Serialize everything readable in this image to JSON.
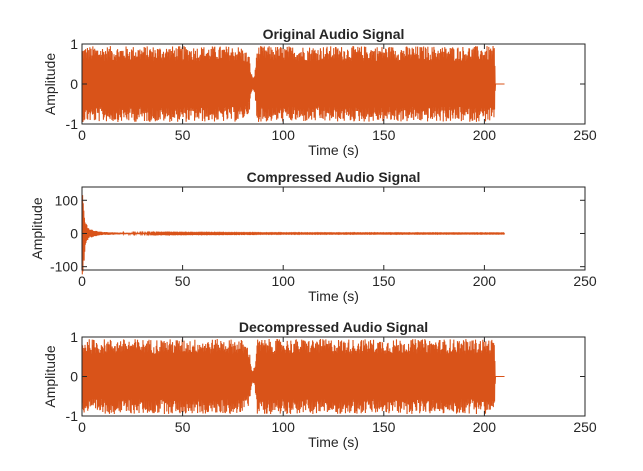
{
  "figure": {
    "background": "#ffffff",
    "signal_color": "#d95319",
    "axis_color": "#262626"
  },
  "chart_data": [
    {
      "type": "line",
      "title": "Original Audio Signal",
      "xlabel": "Time (s)",
      "ylabel": "Amplitude",
      "xlim": [
        0,
        250
      ],
      "ylim": [
        -1,
        1
      ],
      "xticks": [
        0,
        50,
        100,
        150,
        200,
        250
      ],
      "yticks": [
        -1,
        0,
        1
      ],
      "grid": false,
      "series": [
        {
          "color": "#d95319",
          "duration_s": 210,
          "envelope": [
            {
              "t": 0,
              "amp": 0.95
            },
            {
              "t": 79,
              "amp": 0.95
            },
            {
              "t": 81,
              "amp": 0.85
            },
            {
              "t": 83,
              "amp": 0.75
            },
            {
              "t": 84,
              "amp": 0.3
            },
            {
              "t": 85,
              "amp": 0.15
            },
            {
              "t": 86,
              "amp": 0.3
            },
            {
              "t": 87,
              "amp": 0.95
            },
            {
              "t": 205,
              "amp": 0.95
            },
            {
              "t": 205.5,
              "amp": 0.0
            },
            {
              "t": 210,
              "amp": 0.0
            }
          ]
        }
      ]
    },
    {
      "type": "line",
      "title": "Compressed Audio Signal",
      "xlabel": "Time (s)",
      "ylabel": "Amplitude",
      "xlim": [
        0,
        250
      ],
      "ylim": [
        -110,
        140
      ],
      "xticks": [
        0,
        50,
        100,
        150,
        200,
        250
      ],
      "yticks": [
        -100,
        0,
        100
      ],
      "grid": false,
      "series": [
        {
          "color": "#d95319",
          "duration_s": 210,
          "envelope": [
            {
              "t": 0,
              "amp": 140
            },
            {
              "t": 0.8,
              "amp": 110
            },
            {
              "t": 1.5,
              "amp": 40
            },
            {
              "t": 3,
              "amp": 18
            },
            {
              "t": 6,
              "amp": 9
            },
            {
              "t": 10,
              "amp": 5
            },
            {
              "t": 20,
              "amp": 2.5
            },
            {
              "t": 40,
              "amp": 1.8
            },
            {
              "t": 100,
              "amp": 1.2
            },
            {
              "t": 210,
              "amp": 1
            }
          ]
        }
      ]
    },
    {
      "type": "line",
      "title": "Decompressed Audio Signal",
      "xlabel": "Time (s)",
      "ylabel": "Amplitude",
      "xlim": [
        0,
        250
      ],
      "ylim": [
        -1,
        1
      ],
      "xticks": [
        0,
        50,
        100,
        150,
        200,
        250
      ],
      "yticks": [
        -1,
        0,
        1
      ],
      "grid": false,
      "series": [
        {
          "color": "#d95319",
          "duration_s": 210,
          "envelope": [
            {
              "t": 0,
              "amp": 0.95
            },
            {
              "t": 79,
              "amp": 0.95
            },
            {
              "t": 81,
              "amp": 0.85
            },
            {
              "t": 83,
              "amp": 0.75
            },
            {
              "t": 84,
              "amp": 0.3
            },
            {
              "t": 85,
              "amp": 0.15
            },
            {
              "t": 86,
              "amp": 0.3
            },
            {
              "t": 87,
              "amp": 0.95
            },
            {
              "t": 205,
              "amp": 0.95
            },
            {
              "t": 205.5,
              "amp": 0.0
            },
            {
              "t": 210,
              "amp": 0.0
            }
          ]
        }
      ]
    }
  ]
}
